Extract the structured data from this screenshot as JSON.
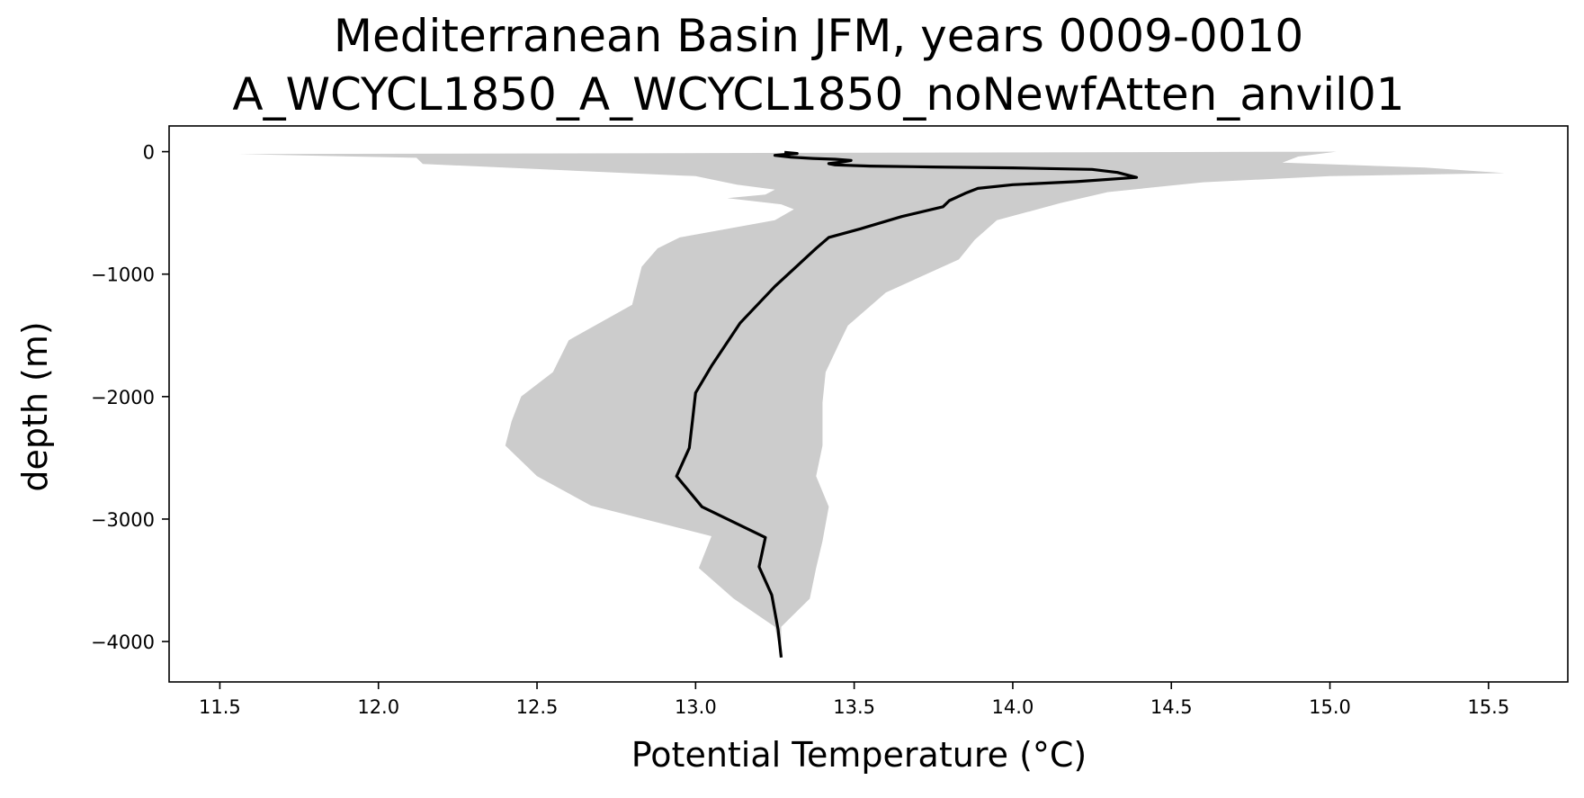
{
  "chart_data": {
    "type": "line",
    "title": "Mediterranean Basin JFM, years 0009-0010",
    "subtitle": "A_WCYCL1850_A_WCYCL1850_noNewfAtten_anvil01",
    "xlabel": "Potential Temperature (°C)",
    "ylabel": "depth (m)",
    "xlim": [
      11.34,
      15.75
    ],
    "ylim": [
      -4330,
      210
    ],
    "xticks": [
      11.5,
      12.0,
      12.5,
      13.0,
      13.5,
      14.0,
      14.5,
      15.0,
      15.5
    ],
    "xtick_labels": [
      "11.5",
      "12.0",
      "12.5",
      "13.0",
      "13.5",
      "14.0",
      "14.5",
      "15.0",
      "15.5"
    ],
    "yticks": [
      0,
      -1000,
      -2000,
      -3000,
      -4000
    ],
    "ytick_labels": [
      "0",
      "−1000",
      "−2000",
      "−3000",
      "−4000"
    ],
    "grid": false,
    "legend": null,
    "colors": {
      "line": "#000000",
      "band": "#cccccc",
      "axes": "#000000"
    },
    "series": [
      {
        "role": "mean-profile",
        "points": [
          [
            13.28,
            -5
          ],
          [
            13.32,
            -15
          ],
          [
            13.25,
            -30
          ],
          [
            13.3,
            -45
          ],
          [
            13.37,
            -55
          ],
          [
            13.44,
            -62
          ],
          [
            13.49,
            -72
          ],
          [
            13.46,
            -85
          ],
          [
            13.42,
            -98
          ],
          [
            13.44,
            -108
          ],
          [
            13.55,
            -118
          ],
          [
            13.75,
            -125
          ],
          [
            14.0,
            -132
          ],
          [
            14.25,
            -145
          ],
          [
            14.33,
            -170
          ],
          [
            14.39,
            -210
          ],
          [
            14.2,
            -245
          ],
          [
            14.0,
            -270
          ],
          [
            13.89,
            -300
          ],
          [
            13.85,
            -340
          ],
          [
            13.8,
            -400
          ],
          [
            13.78,
            -450
          ],
          [
            13.65,
            -530
          ],
          [
            13.52,
            -630
          ],
          [
            13.42,
            -700
          ],
          [
            13.38,
            -790
          ],
          [
            13.25,
            -1100
          ],
          [
            13.14,
            -1400
          ],
          [
            13.05,
            -1750
          ],
          [
            13.0,
            -1970
          ],
          [
            12.99,
            -2200
          ],
          [
            12.98,
            -2420
          ],
          [
            12.94,
            -2650
          ],
          [
            13.02,
            -2900
          ],
          [
            13.22,
            -3150
          ],
          [
            13.2,
            -3390
          ],
          [
            13.24,
            -3620
          ],
          [
            13.26,
            -3900
          ],
          [
            13.27,
            -4130
          ]
        ]
      },
      {
        "role": "range-band",
        "upper": [
          [
            15.02,
            0
          ],
          [
            14.9,
            -40
          ],
          [
            14.85,
            -90
          ],
          [
            15.3,
            -130
          ],
          [
            15.55,
            -175
          ],
          [
            15.0,
            -200
          ],
          [
            14.6,
            -250
          ],
          [
            14.3,
            -330
          ],
          [
            14.15,
            -420
          ],
          [
            13.95,
            -560
          ],
          [
            13.88,
            -720
          ],
          [
            13.83,
            -880
          ],
          [
            13.6,
            -1150
          ],
          [
            13.48,
            -1420
          ],
          [
            13.45,
            -1580
          ],
          [
            13.41,
            -1800
          ],
          [
            13.4,
            -2050
          ],
          [
            13.4,
            -2400
          ],
          [
            13.38,
            -2650
          ],
          [
            13.42,
            -2900
          ],
          [
            13.4,
            -3180
          ],
          [
            13.38,
            -3400
          ],
          [
            13.36,
            -3650
          ],
          [
            13.27,
            -3880
          ],
          [
            13.27,
            -4130
          ]
        ],
        "lower": [
          [
            11.56,
            -20
          ],
          [
            12.12,
            -50
          ],
          [
            12.14,
            -100
          ],
          [
            13.0,
            -200
          ],
          [
            13.13,
            -270
          ],
          [
            13.25,
            -310
          ],
          [
            13.22,
            -350
          ],
          [
            13.1,
            -380
          ],
          [
            13.27,
            -430
          ],
          [
            13.31,
            -470
          ],
          [
            13.25,
            -560
          ],
          [
            12.95,
            -700
          ],
          [
            12.88,
            -790
          ],
          [
            12.83,
            -940
          ],
          [
            12.8,
            -1250
          ],
          [
            12.6,
            -1540
          ],
          [
            12.55,
            -1800
          ],
          [
            12.45,
            -2000
          ],
          [
            12.42,
            -2200
          ],
          [
            12.4,
            -2400
          ],
          [
            12.5,
            -2650
          ],
          [
            12.67,
            -2890
          ],
          [
            13.05,
            -3140
          ],
          [
            13.01,
            -3400
          ],
          [
            13.12,
            -3650
          ],
          [
            13.25,
            -3880
          ],
          [
            13.27,
            -4130
          ]
        ]
      }
    ]
  }
}
